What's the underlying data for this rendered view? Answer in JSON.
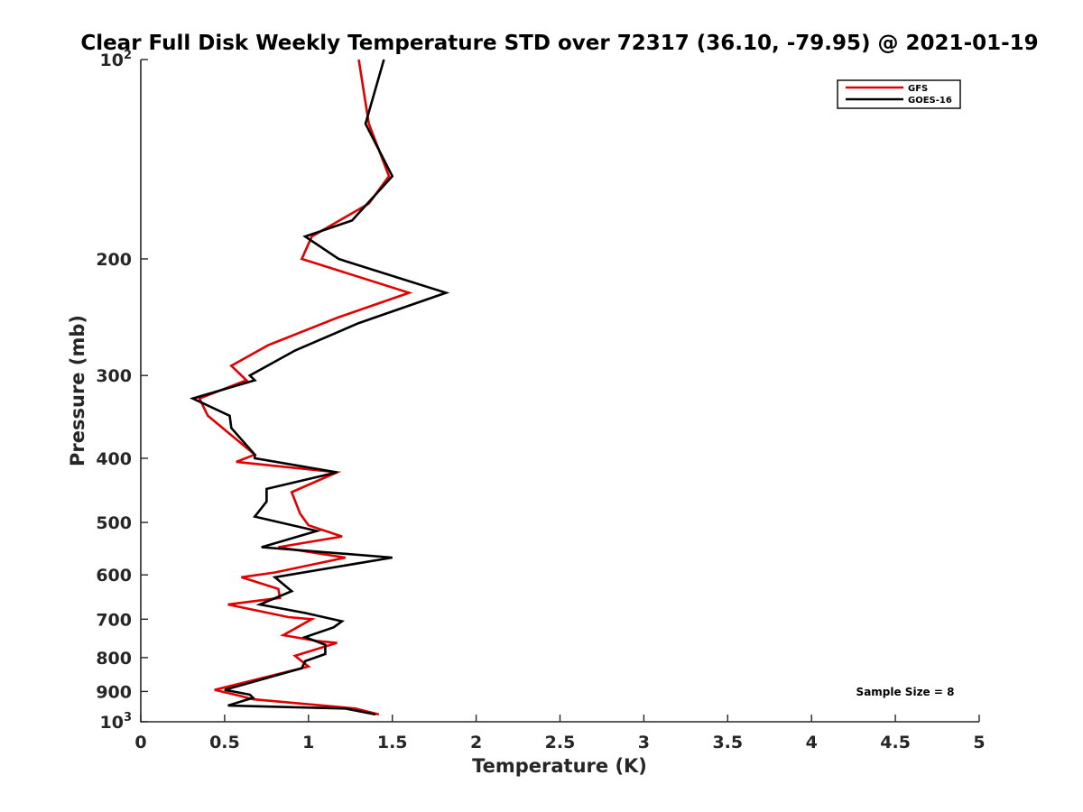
{
  "chart_data": {
    "type": "line",
    "title": "Clear Full Disk Weekly Temperature STD over 72317 (36.10, -79.95) @ 2021-01-19",
    "xlabel": "Temperature (K)",
    "ylabel": "Pressure (mb)",
    "xlim": [
      0,
      5
    ],
    "ylim": [
      100,
      1000
    ],
    "y_scale": "log",
    "y_reversed": true,
    "grid": false,
    "legend_position": "top-right",
    "x_ticks": [
      {
        "v": 0,
        "label": "0"
      },
      {
        "v": 0.5,
        "label": "0.5"
      },
      {
        "v": 1,
        "label": "1"
      },
      {
        "v": 1.5,
        "label": "1.5"
      },
      {
        "v": 2,
        "label": "2"
      },
      {
        "v": 2.5,
        "label": "2.5"
      },
      {
        "v": 3,
        "label": "3"
      },
      {
        "v": 3.5,
        "label": "3.5"
      },
      {
        "v": 4,
        "label": "4"
      },
      {
        "v": 4.5,
        "label": "4.5"
      },
      {
        "v": 5,
        "label": "5"
      }
    ],
    "y_ticks": [
      {
        "v": 100,
        "base": "10",
        "exp": "2"
      },
      {
        "v": 200,
        "base": "200",
        "exp": ""
      },
      {
        "v": 300,
        "base": "300",
        "exp": ""
      },
      {
        "v": 400,
        "base": "400",
        "exp": ""
      },
      {
        "v": 500,
        "base": "500",
        "exp": ""
      },
      {
        "v": 600,
        "base": "600",
        "exp": ""
      },
      {
        "v": 700,
        "base": "700",
        "exp": ""
      },
      {
        "v": 800,
        "base": "800",
        "exp": ""
      },
      {
        "v": 900,
        "base": "900",
        "exp": ""
      },
      {
        "v": 1000,
        "base": "10",
        "exp": "3"
      }
    ],
    "series": [
      {
        "name": "GFS",
        "color": "#e00000",
        "points": [
          [
            1.3,
            100
          ],
          [
            1.36,
            125
          ],
          [
            1.48,
            150
          ],
          [
            1.36,
            165
          ],
          [
            1.02,
            185
          ],
          [
            0.96,
            200
          ],
          [
            1.6,
            225
          ],
          [
            1.18,
            245
          ],
          [
            0.76,
            270
          ],
          [
            0.54,
            290
          ],
          [
            0.63,
            305
          ],
          [
            0.35,
            325
          ],
          [
            0.4,
            345
          ],
          [
            0.68,
            395
          ],
          [
            0.57,
            405
          ],
          [
            1.17,
            420
          ],
          [
            0.9,
            450
          ],
          [
            0.95,
            485
          ],
          [
            1.0,
            505
          ],
          [
            1.2,
            525
          ],
          [
            0.82,
            545
          ],
          [
            1.22,
            565
          ],
          [
            0.8,
            595
          ],
          [
            0.6,
            605
          ],
          [
            0.82,
            630
          ],
          [
            0.83,
            650
          ],
          [
            0.52,
            665
          ],
          [
            0.88,
            695
          ],
          [
            1.02,
            700
          ],
          [
            0.85,
            740
          ],
          [
            1.05,
            755
          ],
          [
            1.17,
            760
          ],
          [
            0.92,
            795
          ],
          [
            1.0,
            825
          ],
          [
            0.44,
            895
          ],
          [
            0.6,
            915
          ],
          [
            0.67,
            925
          ],
          [
            1.28,
            955
          ],
          [
            1.42,
            975
          ]
        ]
      },
      {
        "name": "GOES-16",
        "color": "#000000",
        "points": [
          [
            1.45,
            100
          ],
          [
            1.34,
            125
          ],
          [
            1.5,
            150
          ],
          [
            1.26,
            175
          ],
          [
            0.98,
            185
          ],
          [
            1.18,
            200
          ],
          [
            1.82,
            225
          ],
          [
            1.3,
            250
          ],
          [
            0.92,
            275
          ],
          [
            0.65,
            300
          ],
          [
            0.68,
            305
          ],
          [
            0.31,
            325
          ],
          [
            0.53,
            345
          ],
          [
            0.54,
            360
          ],
          [
            0.68,
            395
          ],
          [
            0.68,
            400
          ],
          [
            1.17,
            420
          ],
          [
            0.75,
            445
          ],
          [
            0.75,
            465
          ],
          [
            0.68,
            490
          ],
          [
            1.05,
            515
          ],
          [
            0.72,
            545
          ],
          [
            1.5,
            565
          ],
          [
            0.8,
            605
          ],
          [
            0.9,
            635
          ],
          [
            0.71,
            665
          ],
          [
            0.98,
            685
          ],
          [
            1.2,
            705
          ],
          [
            1.15,
            720
          ],
          [
            0.98,
            745
          ],
          [
            1.1,
            765
          ],
          [
            1.1,
            790
          ],
          [
            0.98,
            810
          ],
          [
            0.96,
            830
          ],
          [
            0.5,
            895
          ],
          [
            0.65,
            910
          ],
          [
            0.67,
            920
          ],
          [
            0.52,
            945
          ],
          [
            1.22,
            955
          ],
          [
            1.4,
            975
          ]
        ]
      }
    ],
    "annotation": "Sample Size = 8"
  }
}
